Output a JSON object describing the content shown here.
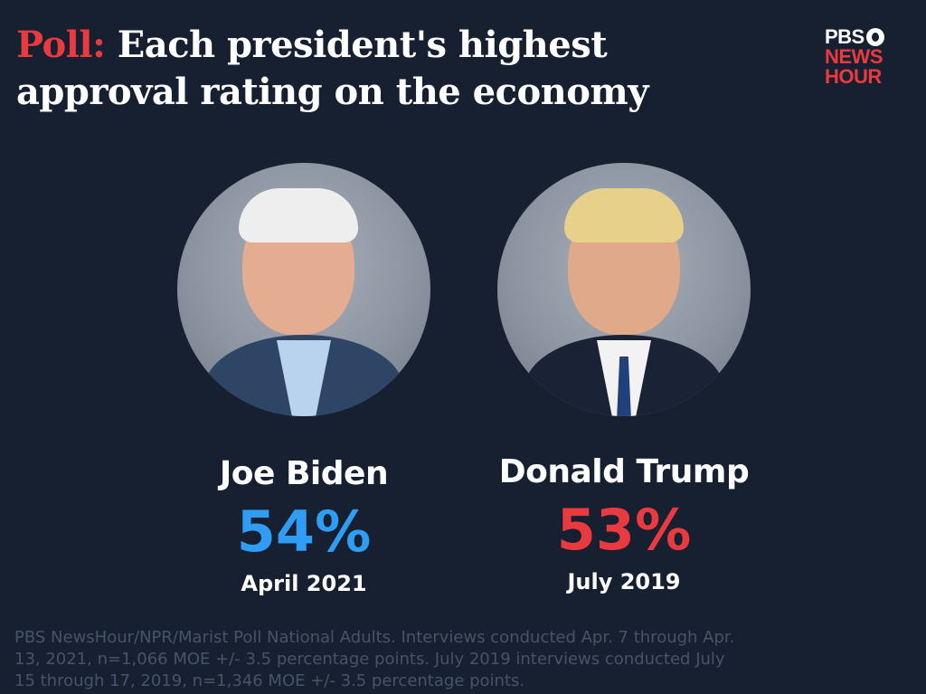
{
  "header": {
    "title_lead": "Poll:",
    "title_rest": "Each president's highest approval rating on the economy"
  },
  "logo": {
    "line1": "PBS",
    "line2": "NEWS",
    "line3": "HOUR"
  },
  "presidents": [
    {
      "name": "Joe Biden",
      "rating": "54%",
      "date": "April 2021",
      "color": "#2f9df4"
    },
    {
      "name": "Donald Trump",
      "rating": "53%",
      "date": "July 2019",
      "color": "#e83a3f"
    }
  ],
  "colors": {
    "background": "#172030",
    "accent_red": "#e83a3f",
    "accent_blue": "#2f9df4",
    "footnote": "#47536a"
  },
  "footnote": "PBS NewsHour/NPR/Marist Poll National Adults. Interviews conducted Apr. 7 through Apr. 13, 2021, n=1,066 MOE +/- 3.5 percentage points. July 2019 interviews conducted July 15 through 17, 2019, n=1,346 MOE +/- 3.5 percentage points."
}
